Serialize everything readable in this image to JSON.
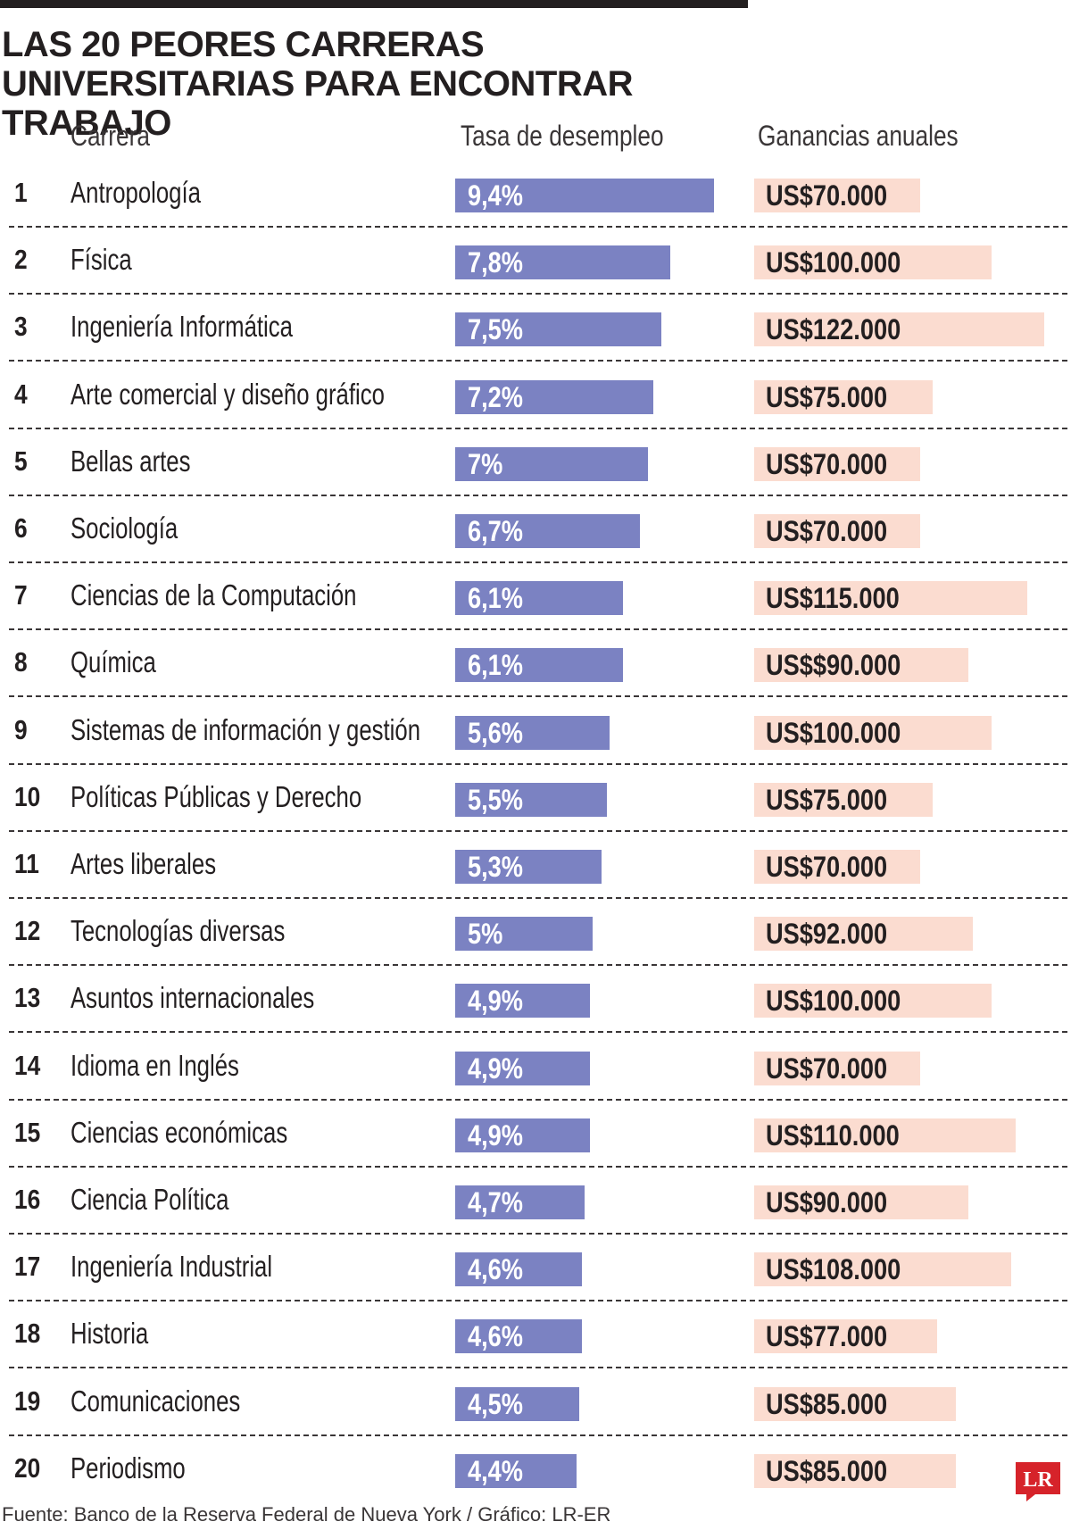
{
  "chart_data": {
    "type": "table",
    "title": "LAS 20 PEORES CARRERAS UNIVERSITARIAS PARA ENCONTRAR TRABAJO",
    "columns": [
      "Carrera",
      "Tasa de desempleo",
      "Ganancias anuales"
    ],
    "rows": [
      {
        "rank": "1",
        "career": "Antropología",
        "rate": 9.4,
        "rate_label": "9,4%",
        "earnings": 70000,
        "earnings_label": "US$70.000"
      },
      {
        "rank": "2",
        "career": "Física",
        "rate": 7.8,
        "rate_label": "7,8%",
        "earnings": 100000,
        "earnings_label": "US$100.000"
      },
      {
        "rank": "3",
        "career": "Ingeniería Informática",
        "rate": 7.5,
        "rate_label": "7,5%",
        "earnings": 122000,
        "earnings_label": "US$122.000"
      },
      {
        "rank": "4",
        "career": "Arte comercial y diseño gráfico",
        "rate": 7.2,
        "rate_label": "7,2%",
        "earnings": 75000,
        "earnings_label": "US$75.000"
      },
      {
        "rank": "5",
        "career": "Bellas artes",
        "rate": 7.0,
        "rate_label": "7%",
        "earnings": 70000,
        "earnings_label": "US$70.000"
      },
      {
        "rank": "6",
        "career": "Sociología",
        "rate": 6.7,
        "rate_label": "6,7%",
        "earnings": 70000,
        "earnings_label": "US$70.000"
      },
      {
        "rank": "7",
        "career": "Ciencias de la Computación",
        "rate": 6.1,
        "rate_label": "6,1%",
        "earnings": 115000,
        "earnings_label": "US$115.000"
      },
      {
        "rank": "8",
        "career": "Química",
        "rate": 6.1,
        "rate_label": "6,1%",
        "earnings": 90000,
        "earnings_label": "US$$90.000"
      },
      {
        "rank": "9",
        "career": "Sistemas de información y gestión",
        "rate": 5.6,
        "rate_label": "5,6%",
        "earnings": 100000,
        "earnings_label": "US$100.000"
      },
      {
        "rank": "10",
        "career": "Políticas Públicas y Derecho",
        "rate": 5.5,
        "rate_label": "5,5%",
        "earnings": 75000,
        "earnings_label": "US$75.000"
      },
      {
        "rank": "11",
        "career": "Artes liberales",
        "rate": 5.3,
        "rate_label": "5,3%",
        "earnings": 70000,
        "earnings_label": "US$70.000"
      },
      {
        "rank": "12",
        "career": "Tecnologías diversas",
        "rate": 5.0,
        "rate_label": "5%",
        "earnings": 92000,
        "earnings_label": "US$92.000"
      },
      {
        "rank": "13",
        "career": "Asuntos internacionales",
        "rate": 4.9,
        "rate_label": "4,9%",
        "earnings": 100000,
        "earnings_label": "US$100.000"
      },
      {
        "rank": "14",
        "career": "Idioma en Inglés",
        "rate": 4.9,
        "rate_label": "4,9%",
        "earnings": 70000,
        "earnings_label": "US$70.000"
      },
      {
        "rank": "15",
        "career": "Ciencias económicas",
        "rate": 4.9,
        "rate_label": "4,9%",
        "earnings": 110000,
        "earnings_label": "US$110.000"
      },
      {
        "rank": "16",
        "career": "Ciencia Política",
        "rate": 4.7,
        "rate_label": "4,7%",
        "earnings": 90000,
        "earnings_label": "US$90.000"
      },
      {
        "rank": "17",
        "career": "Ingeniería Industrial",
        "rate": 4.6,
        "rate_label": "4,6%",
        "earnings": 108000,
        "earnings_label": "US$108.000"
      },
      {
        "rank": "18",
        "career": "Historia",
        "rate": 4.6,
        "rate_label": "4,6%",
        "earnings": 77000,
        "earnings_label": "US$77.000"
      },
      {
        "rank": "19",
        "career": "Comunicaciones",
        "rate": 4.5,
        "rate_label": "4,5%",
        "earnings": 85000,
        "earnings_label": "US$85.000"
      },
      {
        "rank": "20",
        "career": "Periodismo",
        "rate": 4.4,
        "rate_label": "4,4%",
        "earnings": 85000,
        "earnings_label": "US$85.000"
      }
    ],
    "rate_max": 9.4,
    "earnings_max": 122000
  },
  "source": "Fuente: Banco de la Reserva Federal de Nueva York / Gráfico: LR-ER",
  "logo_text": "LR",
  "colors": {
    "rate_bar": "#7b82c2",
    "earnings_bar": "#fbdcd0",
    "logo": "#d6232a"
  }
}
